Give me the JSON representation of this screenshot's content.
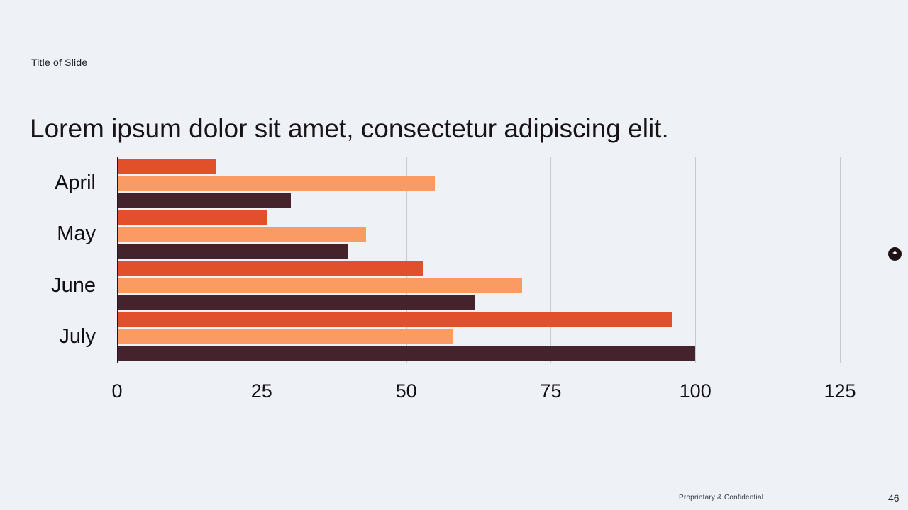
{
  "slide": {
    "eyebrow": "Title of Slide",
    "heading": "Lorem ipsum dolor sit amet, consectetur adipiscing elit.",
    "footer": {
      "confidential": "Proprietary & Confidential",
      "page_number": "46"
    },
    "watermark_icon": "sparkle-badge",
    "watermark_glyph": "✦"
  },
  "colors": {
    "background": "#eef1f6",
    "heading_text": "#171317",
    "axis_line": "#2a171d",
    "gridline": "#c6cbd4",
    "series_orange": "#e1502b",
    "series_salmon": "#f99b62",
    "series_maroon": "#45232c"
  },
  "chart_data": {
    "type": "bar",
    "orientation": "horizontal",
    "title": "",
    "xlabel": "",
    "ylabel": "",
    "categories": [
      "April",
      "May",
      "June",
      "July"
    ],
    "series": [
      {
        "name": "series-1",
        "color": "#e1502b",
        "values": [
          17,
          26,
          53,
          96
        ]
      },
      {
        "name": "series-2",
        "color": "#f99b62",
        "values": [
          55,
          43,
          70,
          58
        ]
      },
      {
        "name": "series-3",
        "color": "#45232c",
        "values": [
          30,
          40,
          62,
          100
        ]
      }
    ],
    "x_ticks": [
      0,
      25,
      50,
      75,
      100,
      125
    ],
    "xlim": [
      0,
      125
    ],
    "grid": "vertical-gridlines",
    "legend": "none"
  }
}
